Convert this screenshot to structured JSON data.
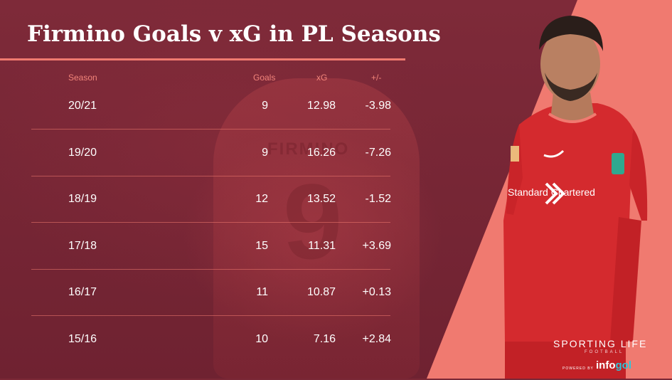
{
  "chart_data": {
    "type": "table",
    "title": "Firmino Goals v xG in PL Seasons",
    "columns": [
      "Season",
      "Goals",
      "xG",
      "+/-"
    ],
    "rows": [
      {
        "season": "20/21",
        "goals": "9",
        "xg": "12.98",
        "diff": "-3.98"
      },
      {
        "season": "19/20",
        "goals": "9",
        "xg": "16.26",
        "diff": "-7.26"
      },
      {
        "season": "18/19",
        "goals": "12",
        "xg": "13.52",
        "diff": "-1.52"
      },
      {
        "season": "17/18",
        "goals": "15",
        "xg": "11.31",
        "diff": "+3.69"
      },
      {
        "season": "16/17",
        "goals": "11",
        "xg": "10.87",
        "diff": "+0.13"
      },
      {
        "season": "15/16",
        "goals": "10",
        "xg": "7.16",
        "diff": "+2.84"
      }
    ]
  },
  "background": {
    "shirt_name": "FIRMINO",
    "shirt_number": "9"
  },
  "player_shirt": {
    "sponsor": "Standard Chartered"
  },
  "branding": {
    "brand": "SPORTING LIFE",
    "brand_sub": "FOOTBALL",
    "powered_by": "POWERED BY",
    "partner_prefix": "info",
    "partner_suffix": "gol"
  },
  "colors": {
    "background": "#7a2836",
    "accent": "#f07a70",
    "shirt": "#d42a2e",
    "text": "#ffffff"
  }
}
